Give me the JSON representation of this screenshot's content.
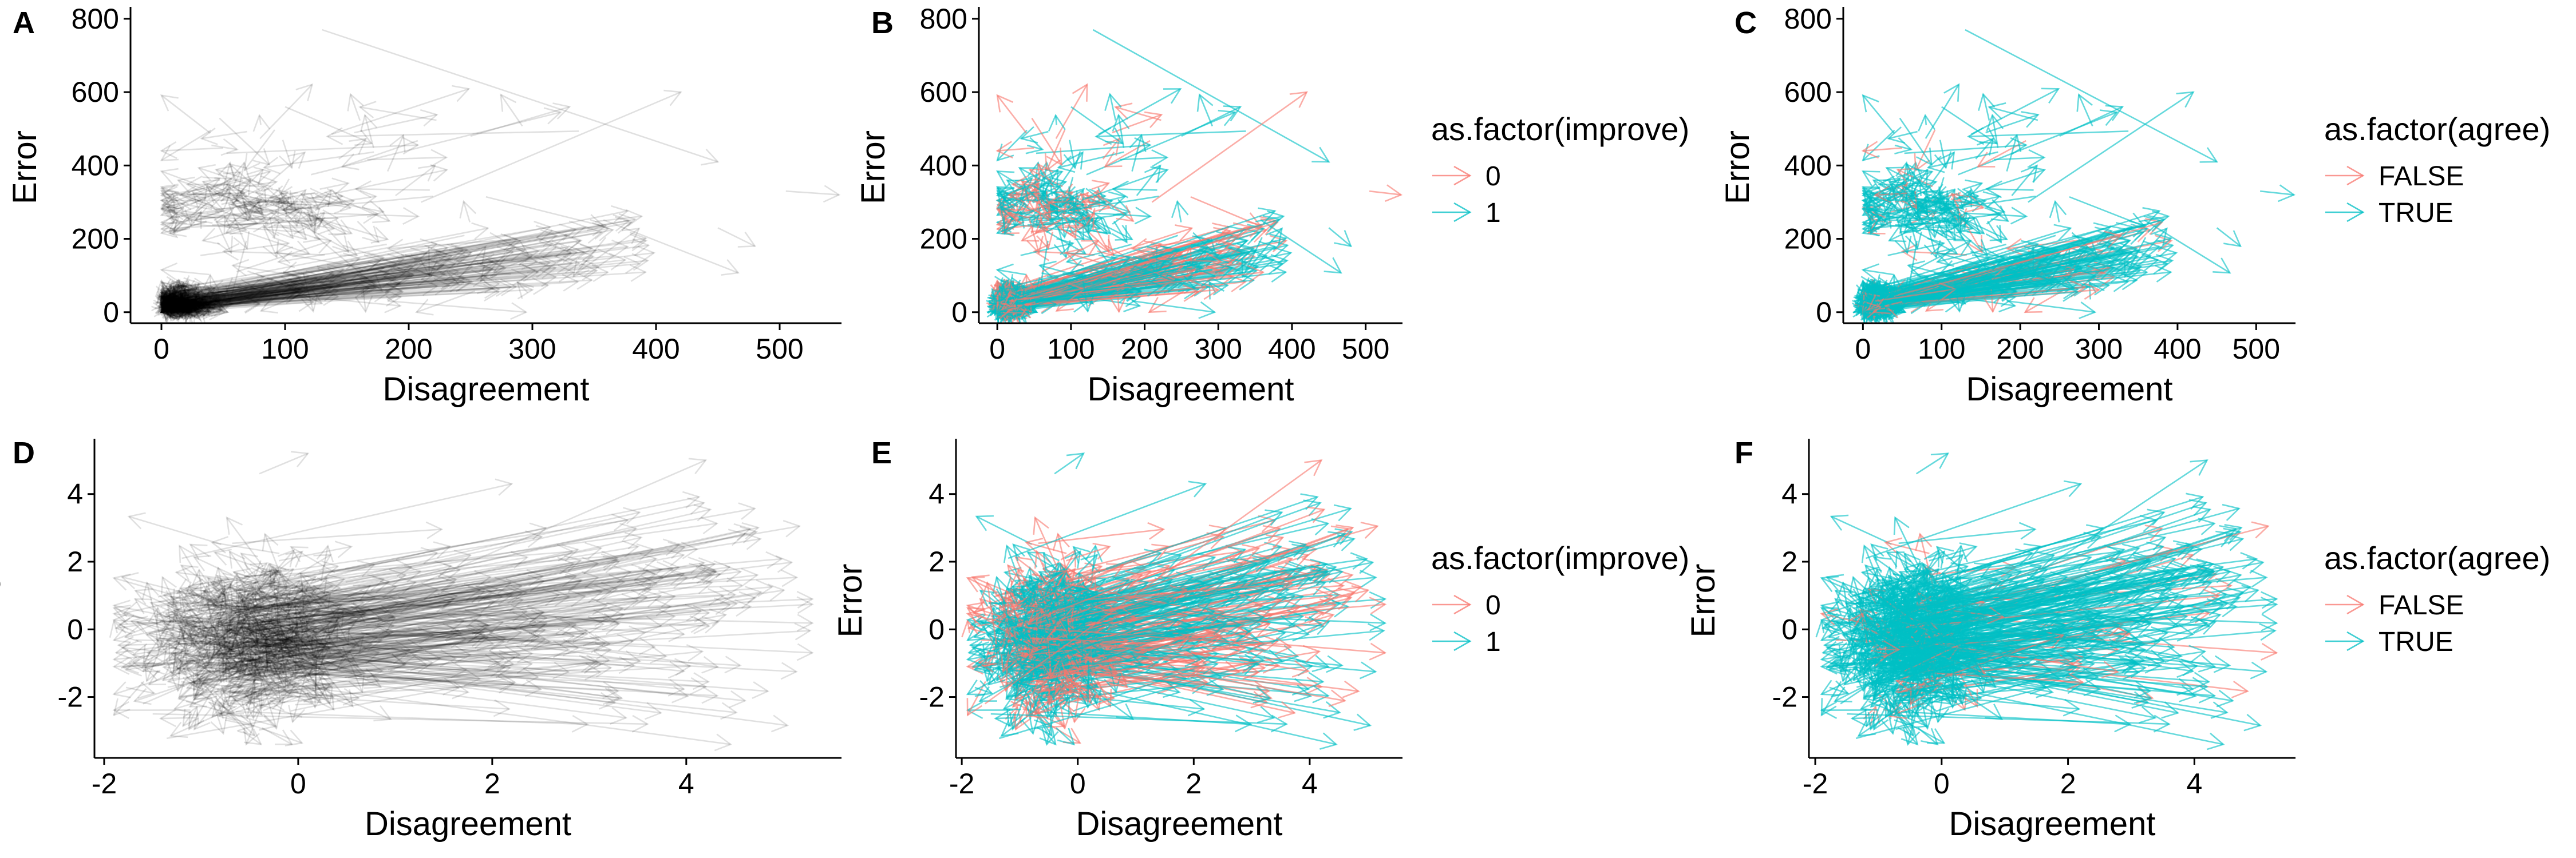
{
  "chart_data": [
    {
      "panel": "A",
      "type": "line",
      "xlabel": "Disagreement",
      "ylabel": "Error",
      "xlim": [
        -25,
        550
      ],
      "ylim": [
        -30,
        820
      ],
      "xticks": [
        0,
        100,
        200,
        300,
        400,
        500
      ],
      "yticks": [
        0,
        200,
        400,
        600,
        800
      ],
      "grid": false,
      "mark": "arrow segments (from previous to revised estimate)",
      "series": [
        {
          "color": "#000000",
          "opacity": 0.12,
          "count": 900,
          "cluster_center": [
            15,
            25
          ],
          "max_extent": [
            540,
            790
          ]
        }
      ]
    },
    {
      "panel": "B",
      "type": "line",
      "xlabel": "Disagreement",
      "ylabel": "Error",
      "xlim": [
        -25,
        550
      ],
      "ylim": [
        -30,
        820
      ],
      "xticks": [
        0,
        100,
        200,
        300,
        400,
        500
      ],
      "yticks": [
        0,
        200,
        400,
        600,
        800
      ],
      "grid": false,
      "legend": {
        "title": "as.factor(improve)",
        "position": "right",
        "entries": [
          "0",
          "1"
        ]
      },
      "series": [
        {
          "name": "0",
          "color": "#F8766D",
          "count": 350
        },
        {
          "name": "1",
          "color": "#00BFC4",
          "count": 550
        }
      ]
    },
    {
      "panel": "C",
      "type": "line",
      "xlabel": "Disagreement",
      "ylabel": "Error",
      "xlim": [
        -25,
        550
      ],
      "ylim": [
        -30,
        820
      ],
      "xticks": [
        0,
        100,
        200,
        300,
        400,
        500
      ],
      "yticks": [
        0,
        200,
        400,
        600,
        800
      ],
      "grid": false,
      "legend": {
        "title": "as.factor(agree)",
        "position": "right",
        "entries": [
          "FALSE",
          "TRUE"
        ]
      },
      "series": [
        {
          "name": "FALSE",
          "color": "#F8766D",
          "count": 80
        },
        {
          "name": "TRUE",
          "color": "#00BFC4",
          "count": 820
        }
      ]
    },
    {
      "panel": "D",
      "type": "line",
      "xlabel": "Disagreement",
      "ylabel": "Error",
      "xlim": [
        -2.1,
        5.6
      ],
      "ylim": [
        -3.8,
        5.5
      ],
      "xticks": [
        -2,
        0,
        2,
        4
      ],
      "yticks": [
        -2,
        0,
        2,
        4
      ],
      "grid": false,
      "series": [
        {
          "color": "#000000",
          "opacity": 0.12,
          "count": 900,
          "cluster_center": [
            -0.5,
            -0.3
          ]
        }
      ]
    },
    {
      "panel": "E",
      "type": "line",
      "xlabel": "Disagreement",
      "ylabel": "Error",
      "xlim": [
        -2.1,
        5.6
      ],
      "ylim": [
        -3.8,
        5.5
      ],
      "xticks": [
        -2,
        0,
        2,
        4
      ],
      "yticks": [
        -2,
        0,
        2,
        4
      ],
      "grid": false,
      "legend": {
        "title": "as.factor(improve)",
        "position": "right",
        "entries": [
          "0",
          "1"
        ]
      },
      "series": [
        {
          "name": "0",
          "color": "#F8766D",
          "count": 350
        },
        {
          "name": "1",
          "color": "#00BFC4",
          "count": 550
        }
      ]
    },
    {
      "panel": "F",
      "type": "line",
      "xlabel": "Disagreement",
      "ylabel": "Error",
      "xlim": [
        -2.1,
        5.6
      ],
      "ylim": [
        -3.8,
        5.5
      ],
      "xticks": [
        -2,
        0,
        2,
        4
      ],
      "yticks": [
        -2,
        0,
        2,
        4
      ],
      "grid": false,
      "legend": {
        "title": "as.factor(agree)",
        "position": "right",
        "entries": [
          "FALSE",
          "TRUE"
        ]
      },
      "series": [
        {
          "name": "FALSE",
          "color": "#F8766D",
          "count": 80
        },
        {
          "name": "TRUE",
          "color": "#00BFC4",
          "count": 820
        }
      ]
    }
  ]
}
